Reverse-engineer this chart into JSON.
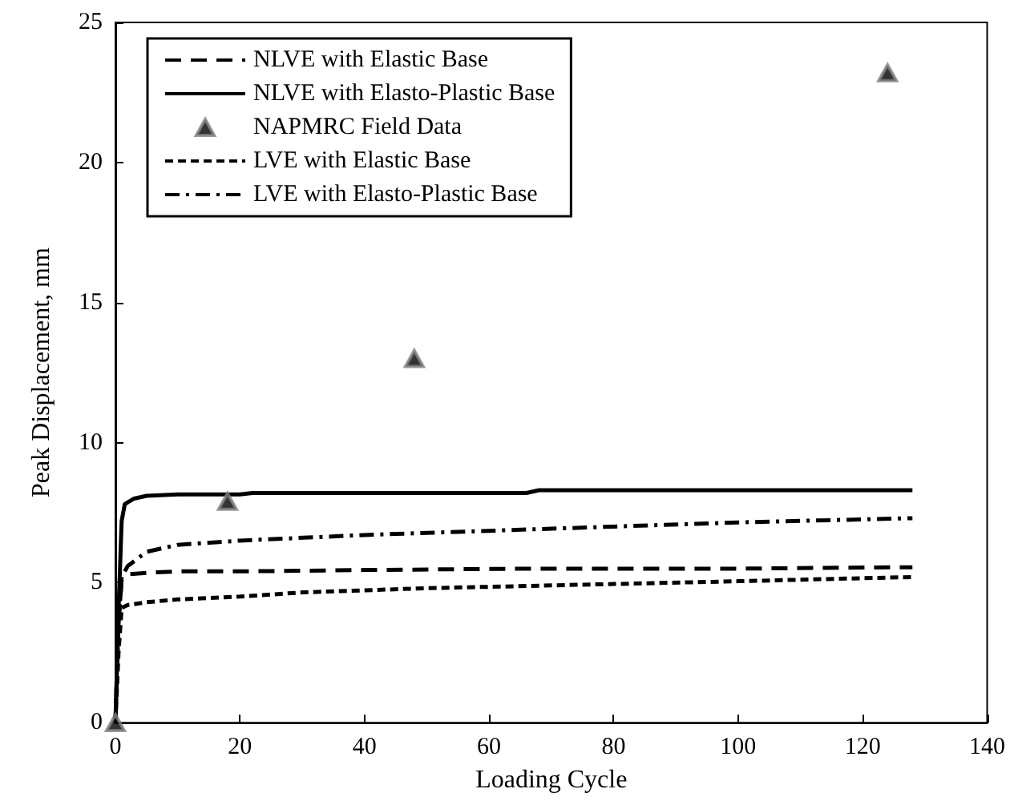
{
  "chart_data": {
    "type": "line",
    "xlabel": "Loading Cycle",
    "ylabel": "Peak Displacement, mm",
    "xlim": [
      0,
      140
    ],
    "xticks": [
      0,
      20,
      40,
      60,
      80,
      100,
      120,
      140
    ],
    "ylim": [
      0,
      25
    ],
    "yticks": [
      0,
      5,
      10,
      15,
      20,
      25
    ],
    "grid": false,
    "legend": "top left",
    "marker": "none",
    "series": [
      {
        "name": "NLVE with Elastic Base",
        "color": "#000000",
        "line_style": "dashed",
        "x": [
          0,
          0.5,
          1,
          2,
          5,
          10,
          20,
          40,
          67,
          100,
          128
        ],
        "values": [
          0,
          3.5,
          5.1,
          5.3,
          5.35,
          5.4,
          5.4,
          5.45,
          5.5,
          5.5,
          5.55
        ]
      },
      {
        "name": "NLVE with Elasto-Plastic Base",
        "color": "#000000",
        "line_style": "solid",
        "x": [
          0,
          0.5,
          1,
          1.5,
          3,
          5,
          10,
          20,
          22,
          40,
          66,
          68,
          100,
          128
        ],
        "values": [
          0,
          4,
          7.2,
          7.8,
          8.0,
          8.1,
          8.15,
          8.15,
          8.2,
          8.2,
          8.2,
          8.3,
          8.3,
          8.3
        ]
      },
      {
        "name": "NAPMRC Field Data",
        "type": "scatter",
        "color": "#808080",
        "marker": "triangle",
        "x": [
          0,
          18,
          48,
          124
        ],
        "values": [
          0,
          7.9,
          13,
          23.2
        ]
      },
      {
        "name": "LVE with Elastic Base",
        "color": "#000000",
        "line_style": "dotted",
        "x": [
          0,
          0.5,
          1,
          2,
          5,
          10,
          20,
          30,
          50,
          80,
          100,
          128
        ],
        "values": [
          0,
          2.5,
          4.1,
          4.2,
          4.3,
          4.4,
          4.5,
          4.65,
          4.8,
          4.95,
          5.05,
          5.2
        ]
      },
      {
        "name": "LVE with Elasto-Plastic Base",
        "color": "#000000",
        "line_style": "dashdot",
        "x": [
          0,
          0.5,
          1,
          2,
          5,
          10,
          20,
          40,
          60,
          80,
          100,
          128
        ],
        "values": [
          0,
          3.5,
          5.2,
          5.6,
          6.1,
          6.35,
          6.5,
          6.7,
          6.85,
          7.0,
          7.15,
          7.3
        ]
      }
    ]
  }
}
